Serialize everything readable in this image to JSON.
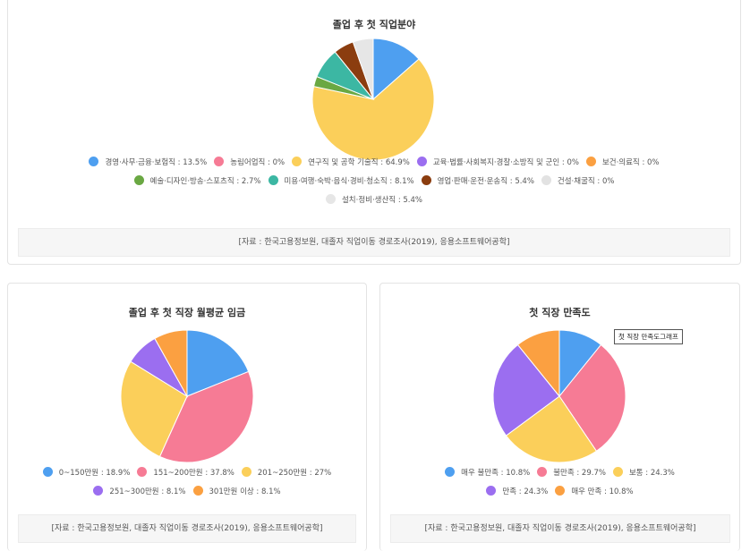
{
  "chart_data": [
    {
      "type": "pie",
      "title": "졸업 후 첫 직업분야",
      "slices": [
        {
          "label": "경영·사무·금융·보험직 : 13.5%",
          "name": "경영·사무·금융·보험직",
          "value": 13.5,
          "color": "#4e9ff0"
        },
        {
          "label": "농림어업직 : 0%",
          "name": "농림어업직",
          "value": 0,
          "color": "#f67b95"
        },
        {
          "label": "연구직 및 공학 기술직 : 64.9%",
          "name": "연구직 및 공학 기술직",
          "value": 64.9,
          "color": "#fbcf5a"
        },
        {
          "label": "교육·법률·사회복지·경찰·소방직 및 군인 : 0%",
          "name": "교육·법률·사회복지·경찰·소방직 및 군인",
          "value": 0,
          "color": "#9b6ef0"
        },
        {
          "label": "보건·의료직 : 0%",
          "name": "보건·의료직",
          "value": 0,
          "color": "#fba041"
        },
        {
          "label": "예술·디자인·방송·스포츠직 : 2.7%",
          "name": "예술·디자인·방송·스포츠직",
          "value": 2.7,
          "color": "#6aa843"
        },
        {
          "label": "미용·여행·숙박·음식·경비·청소직 : 8.1%",
          "name": "미용·여행·숙박·음식·경비·청소직",
          "value": 8.1,
          "color": "#3cb7a3"
        },
        {
          "label": "영업·판매·운전·운송직 : 5.4%",
          "name": "영업·판매·운전·운송직",
          "value": 5.4,
          "color": "#8b3d0f"
        },
        {
          "label": "건설·채굴직 : 0%",
          "name": "건설·채굴직",
          "value": 0,
          "color": "#e2e2e2"
        },
        {
          "label": "설치·정비·생산직 : 5.4%",
          "name": "설치·정비·생산직",
          "value": 5.4,
          "color": "#e6e6e6"
        }
      ],
      "legend_rows": [
        [
          0,
          1,
          2,
          3,
          4
        ],
        [
          5,
          6,
          7,
          8
        ],
        [
          9
        ]
      ],
      "source": "[자료 : 한국고용정보원, 대졸자 직업이동 경로조사(2019), 응용소프트웨어공학]"
    },
    {
      "type": "pie",
      "title": "졸업 후 첫 직장 월평균 임금",
      "slices": [
        {
          "label": "0~150만원 : 18.9%",
          "name": "0~150만원",
          "value": 18.9,
          "color": "#4e9ff0"
        },
        {
          "label": "151~200만원 : 37.8%",
          "name": "151~200만원",
          "value": 37.8,
          "color": "#f67b95"
        },
        {
          "label": "201~250만원 : 27%",
          "name": "201~250만원",
          "value": 27,
          "color": "#fbcf5a"
        },
        {
          "label": "251~300만원 : 8.1%",
          "name": "251~300만원",
          "value": 8.1,
          "color": "#9b6ef0"
        },
        {
          "label": "301만원 이상 : 8.1%",
          "name": "301만원 이상",
          "value": 8.1,
          "color": "#fba041"
        }
      ],
      "legend_rows": [
        [
          0,
          1,
          2
        ],
        [
          3,
          4
        ]
      ],
      "source": "[자료 : 한국고용정보원, 대졸자 직업이동 경로조사(2019), 응용소프트웨어공학]"
    },
    {
      "type": "pie",
      "title": "첫 직장 만족도",
      "slices": [
        {
          "label": "매우 불만족 : 10.8%",
          "name": "매우 불만족",
          "value": 10.8,
          "color": "#4e9ff0"
        },
        {
          "label": "불만족 : 29.7%",
          "name": "불만족",
          "value": 29.7,
          "color": "#f67b95"
        },
        {
          "label": "보통 : 24.3%",
          "name": "보통",
          "value": 24.3,
          "color": "#fbcf5a"
        },
        {
          "label": "만족 : 24.3%",
          "name": "만족",
          "value": 24.3,
          "color": "#9b6ef0"
        },
        {
          "label": "매우 만족 : 10.8%",
          "name": "매우 만족",
          "value": 10.8,
          "color": "#fba041"
        }
      ],
      "legend_rows": [
        [
          0,
          1,
          2
        ],
        [
          3,
          4
        ]
      ],
      "source": "[자료 : 한국고용정보원, 대졸자 직업이동 경로조사(2019), 응용소프트웨어공학]",
      "tooltip": "첫 직장 만족도그래프"
    }
  ]
}
